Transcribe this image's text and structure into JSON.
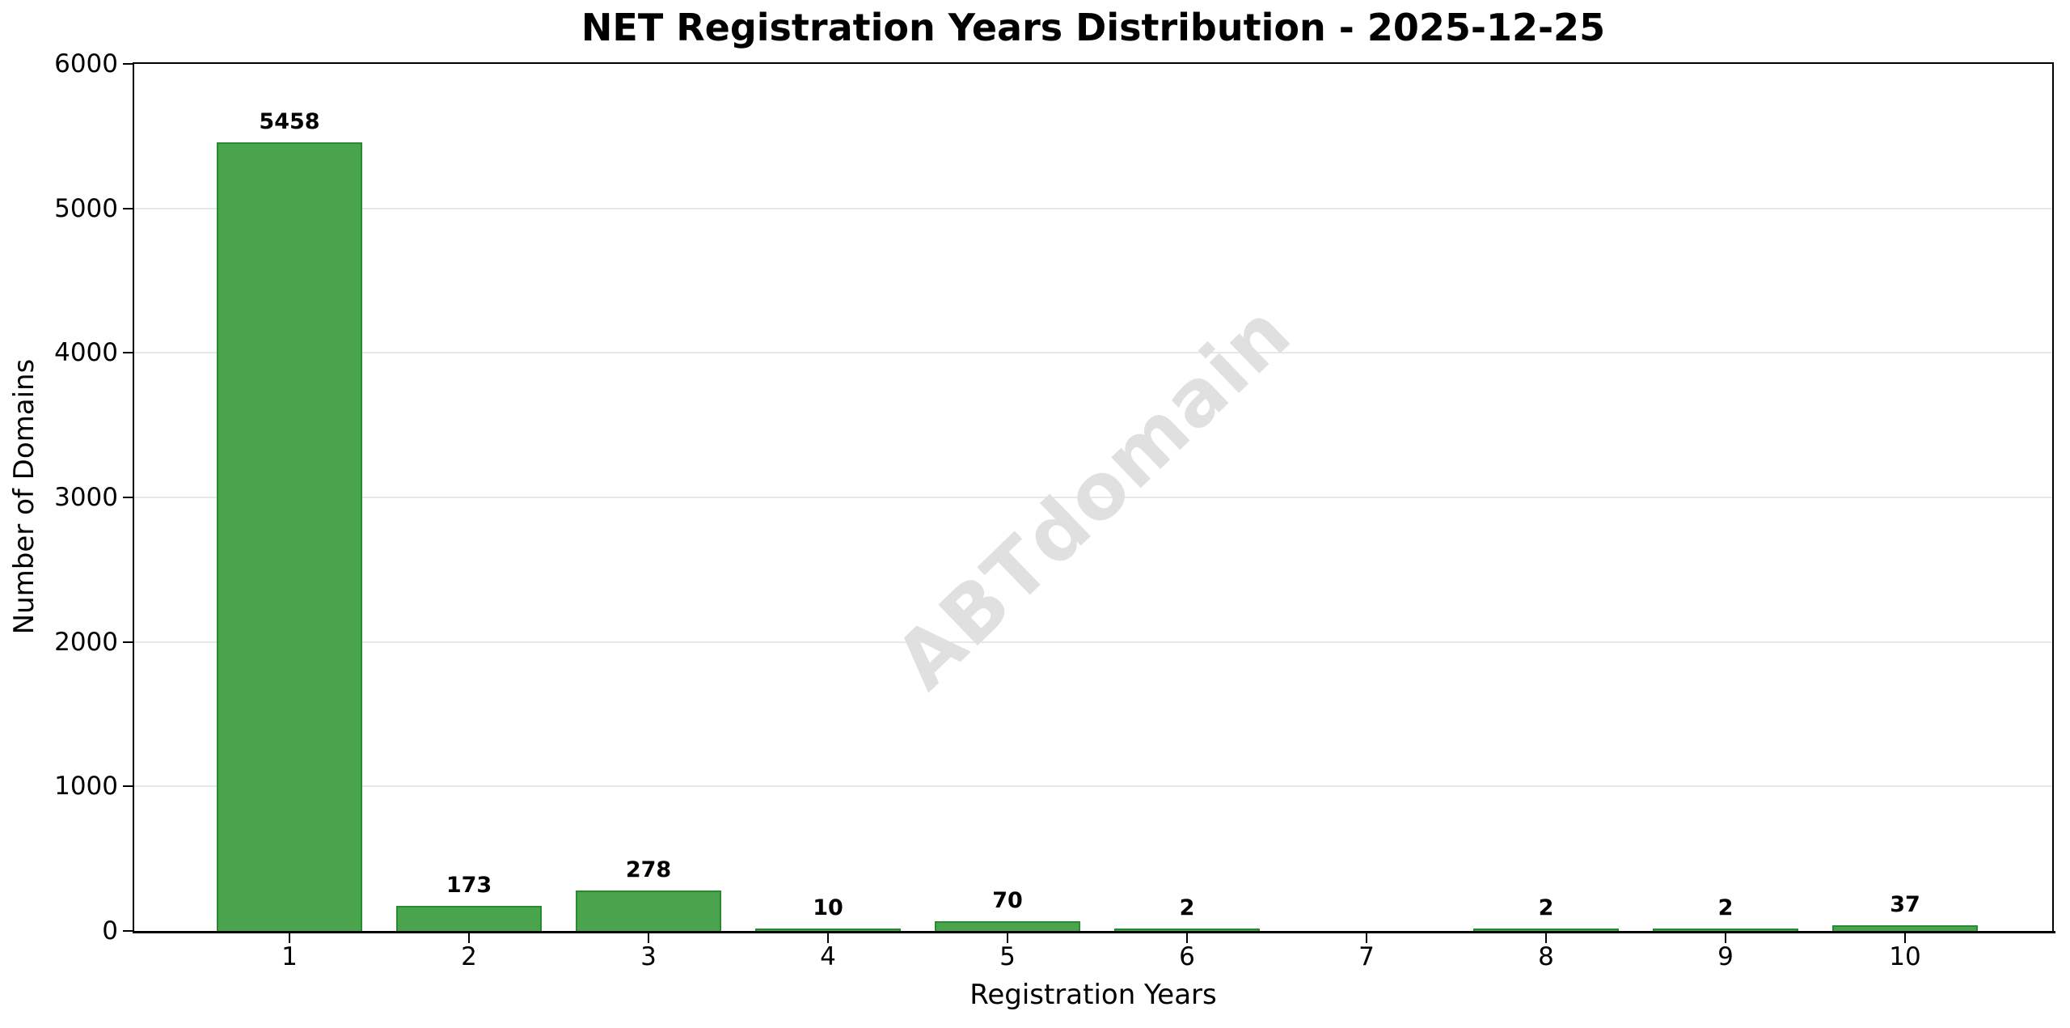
{
  "figure": {
    "title": "NET Registration Years Distribution - 2025-12-25",
    "x_axis_label": "Registration Years",
    "y_axis_label": "Number of Domains",
    "watermark_text": "ABTdomain"
  },
  "chart_data": {
    "type": "bar",
    "title": "NET Registration Years Distribution - 2025-12-25",
    "xlabel": "Registration Years",
    "ylabel": "Number of Domains",
    "categories": [
      "1",
      "2",
      "3",
      "4",
      "5",
      "6",
      "7",
      "8",
      "9",
      "10"
    ],
    "values": [
      5458,
      173,
      278,
      10,
      70,
      2,
      0,
      2,
      2,
      37
    ],
    "bar_value_labels": [
      "5458",
      "173",
      "278",
      "10",
      "70",
      "2",
      "",
      "2",
      "2",
      "37"
    ],
    "yticks": [
      0,
      1000,
      2000,
      3000,
      4000,
      5000,
      6000
    ],
    "ylim": [
      0,
      6000
    ],
    "grid": "horizontal",
    "legend": "none",
    "watermark": "ABTdomain",
    "colors": {
      "bar_fill": "#4aa34d",
      "bar_edge": "#278c2b",
      "grid": "#e8e8e8",
      "axis": "#000000",
      "watermark": "#e0e0e0",
      "text": "#000000"
    }
  }
}
